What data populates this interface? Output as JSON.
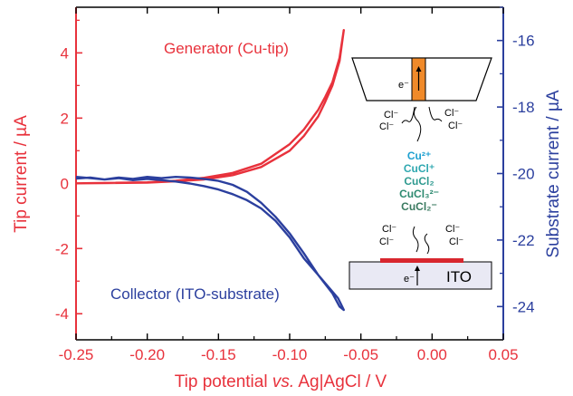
{
  "chart_data": {
    "type": "line",
    "title": "",
    "xlabel_parts": [
      "Tip potential ",
      "vs.",
      " Ag|AgCl / V"
    ],
    "ylabel_left": "Tip current / µA",
    "ylabel_right": "Substrate current / µA",
    "xlim": [
      -0.25,
      0.05
    ],
    "ylim_left": [
      -4.8,
      5.4
    ],
    "ylim_right": [
      -25,
      -15
    ],
    "x_ticks": [
      "-0.25",
      "-0.20",
      "-0.15",
      "-0.10",
      "-0.05",
      "0.00",
      "0.05"
    ],
    "x_tick_values": [
      -0.25,
      -0.2,
      -0.15,
      -0.1,
      -0.05,
      0.0,
      0.05
    ],
    "y_left_ticks": [
      "-4",
      "-2",
      "0",
      "2",
      "4"
    ],
    "y_left_tick_values": [
      -4,
      -2,
      0,
      2,
      4
    ],
    "y_right_ticks": [
      "-24",
      "-22",
      "-20",
      "-18",
      "-16"
    ],
    "y_right_tick_values": [
      -24,
      -22,
      -20,
      -18,
      -16
    ],
    "colors": {
      "left_axis": "#e8323c",
      "right_axis": "#2b3f9e",
      "generator": "#e8323c",
      "collector": "#2b3f9e"
    },
    "series": [
      {
        "name": "Generator (Cu-tip)",
        "axis": "left",
        "color": "#e8323c",
        "x": [
          -0.25,
          -0.2,
          -0.18,
          -0.16,
          -0.14,
          -0.12,
          -0.1,
          -0.09,
          -0.08,
          -0.075,
          -0.07,
          -0.065,
          -0.062,
          -0.065,
          -0.07,
          -0.075,
          -0.08,
          -0.09,
          -0.1,
          -0.12,
          -0.14,
          -0.16,
          -0.18,
          -0.2,
          -0.25
        ],
        "y": [
          0.0,
          0.02,
          0.06,
          0.12,
          0.25,
          0.5,
          1.0,
          1.45,
          2.05,
          2.5,
          3.0,
          3.75,
          4.7,
          3.85,
          3.1,
          2.65,
          2.25,
          1.65,
          1.2,
          0.6,
          0.32,
          0.17,
          0.08,
          0.03,
          0.0
        ]
      },
      {
        "name": "Collector (ITO-substrate)",
        "axis": "right",
        "color": "#2b3f9e",
        "x": [
          -0.25,
          -0.24,
          -0.23,
          -0.22,
          -0.21,
          -0.2,
          -0.19,
          -0.18,
          -0.17,
          -0.16,
          -0.15,
          -0.14,
          -0.13,
          -0.12,
          -0.11,
          -0.1,
          -0.09,
          -0.08,
          -0.07,
          -0.065,
          -0.062,
          -0.066,
          -0.072,
          -0.08,
          -0.09,
          -0.1,
          -0.11,
          -0.12,
          -0.13,
          -0.14,
          -0.15,
          -0.16,
          -0.17,
          -0.18,
          -0.19,
          -0.2,
          -0.21,
          -0.22,
          -0.23,
          -0.24,
          -0.25
        ],
        "y": [
          -20.15,
          -20.12,
          -20.18,
          -20.14,
          -20.2,
          -20.16,
          -20.2,
          -20.24,
          -20.3,
          -20.38,
          -20.48,
          -20.62,
          -20.8,
          -21.05,
          -21.42,
          -21.92,
          -22.55,
          -23.05,
          -23.6,
          -24.0,
          -24.1,
          -23.75,
          -23.45,
          -23.05,
          -22.4,
          -21.8,
          -21.3,
          -20.88,
          -20.55,
          -20.34,
          -20.22,
          -20.16,
          -20.12,
          -20.1,
          -20.14,
          -20.1,
          -20.16,
          -20.12,
          -20.18,
          -20.14,
          -20.1
        ]
      }
    ],
    "annotations": {
      "generator_label": "Generator (Cu-tip)",
      "collector_label": "Collector (ITO-substrate)"
    }
  },
  "inset": {
    "electron_top": "e⁻",
    "cl_left_1": "Cl⁻",
    "cl_left_2": "Cl⁻",
    "cl_right_1": "Cl⁻",
    "cl_right_2": "Cl⁻",
    "species": [
      "Cu²⁺",
      "CuCl⁺",
      "CuCl₂",
      "CuCl₃²⁻",
      "CuCl₂⁻"
    ],
    "species_colors": [
      "#1fa0d0",
      "#2fa8b0",
      "#2f9a90",
      "#2d8a70",
      "#3a7a60"
    ],
    "cl_bottom_left_1": "Cl⁻",
    "cl_bottom_left_2": "Cl⁻",
    "cl_bottom_right_1": "Cl⁻",
    "cl_bottom_right_2": "Cl⁻",
    "electron_bottom": "e⁻",
    "substrate_label": "ITO"
  }
}
